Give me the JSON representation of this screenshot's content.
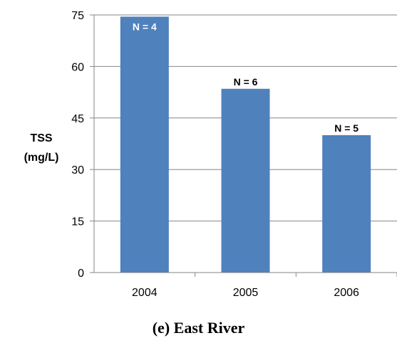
{
  "chart_data": {
    "type": "bar",
    "categories": [
      "2004",
      "2005",
      "2006"
    ],
    "values": [
      74.5,
      53.5,
      40
    ],
    "bar_labels": [
      "N = 4",
      "N = 6",
      "N = 5"
    ],
    "ylabel_lines": [
      "TSS",
      "(mg/L)"
    ],
    "ylim": [
      0,
      75
    ],
    "yticks": [
      "0",
      "15",
      "30",
      "45",
      "60",
      "75"
    ],
    "ytick_values": [
      0,
      15,
      30,
      45,
      60,
      75
    ],
    "grid": true,
    "bar_color": "#4f81bd",
    "grid_color": "#868686"
  },
  "caption": "(e) East River"
}
